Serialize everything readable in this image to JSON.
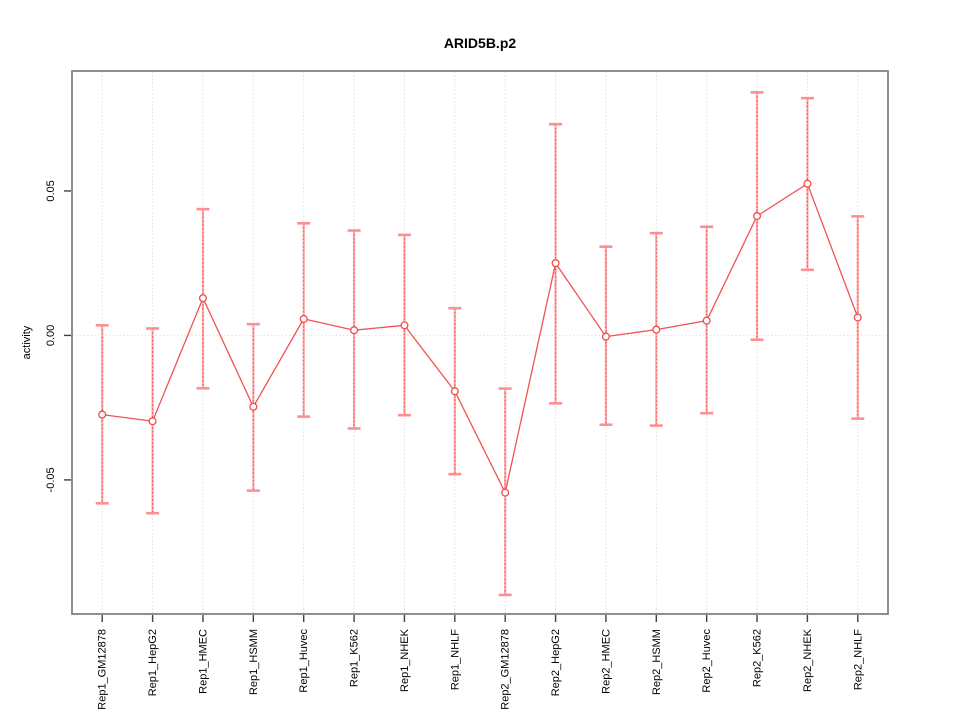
{
  "figure": {
    "background": "#ffffff"
  },
  "chart_data": {
    "type": "line",
    "title": "ARID5B.p2",
    "xlabel": "",
    "ylabel": "activity",
    "categories": [
      "Rep1_GM12878",
      "Rep1_HepG2",
      "Rep1_HMEC",
      "Rep1_HSMM",
      "Rep1_Huvec",
      "Rep1_K562",
      "Rep1_NHEK",
      "Rep1_NHLF",
      "Rep2_GM12878",
      "Rep2_HepG2",
      "Rep2_HMEC",
      "Rep2_HSMM",
      "Rep2_Huvec",
      "Rep2_K562",
      "Rep2_NHEK",
      "Rep2_NHLF"
    ],
    "series": [
      {
        "name": "activity",
        "values": [
          -0.0274,
          -0.0297,
          0.0129,
          -0.0247,
          0.0057,
          0.0018,
          0.0035,
          -0.0193,
          -0.0544,
          0.025,
          -0.0004,
          0.002,
          0.0051,
          0.0413,
          0.0525,
          0.0062
        ]
      }
    ],
    "error_bars": {
      "upper": [
        0.0035,
        0.0024,
        0.0437,
        0.0039,
        0.0388,
        0.0363,
        0.0348,
        0.0094,
        -0.0184,
        0.0731,
        0.0307,
        0.0354,
        0.0376,
        0.0841,
        0.0821,
        0.0412
      ],
      "lower": [
        -0.0581,
        -0.0615,
        -0.0183,
        -0.0537,
        -0.0281,
        -0.0322,
        -0.0276,
        -0.048,
        -0.0898,
        -0.0235,
        -0.0309,
        -0.0312,
        -0.0269,
        -0.0015,
        0.0227,
        -0.0288
      ]
    },
    "yticks": {
      "values": [
        0.05,
        0.0,
        -0.05
      ],
      "labels": [
        "0.05",
        "0.00",
        "-0.05"
      ]
    },
    "ylim": [
      -0.0964,
      0.0915
    ],
    "grid": {
      "vertical": "dotted line at each category",
      "horizontal": "dotted zero line only"
    },
    "legend": "none",
    "marker": "open-circle",
    "colors": {
      "series_line": "#f25252",
      "marker_stroke": "#ee4b4b",
      "marker_fill": "#ffffff",
      "whisker_pale": "#ffa6a6",
      "whisker_dash": "#f04e4e",
      "cap": "#ff8f8f",
      "gridline": "#d8d8d8",
      "zero_line": "#dcdcdc",
      "box_border": "#828282",
      "tick_mark": "#404040",
      "text": "#000000",
      "background": "#ffffff"
    }
  }
}
